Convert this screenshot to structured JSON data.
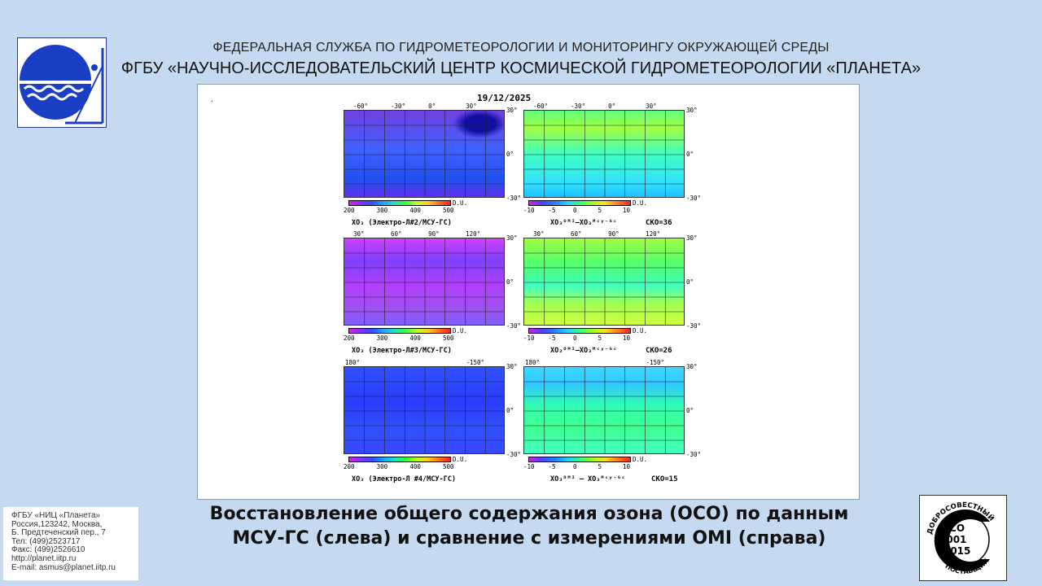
{
  "header": {
    "line1": "ФЕДЕРАЛЬНАЯ СЛУЖБА ПО ГИДРОМЕТЕОРОЛОГИИ И МОНИТОРИНГУ ОКРУЖАЮЩЕЙ СРЕДЫ",
    "line2": "ФГБУ «НАУЧНО-ИССЛЕДОВАТЕЛЬСКИЙ ЦЕНТР КОСМИЧЕСКОЙ ГИДРОМЕТЕОРОЛОГИИ «ПЛАНЕТА»"
  },
  "figure": {
    "date": "19/12/2025",
    "dot": ".",
    "unit": "D.U.",
    "abs_scale": [
      "200",
      "300",
      "400",
      "500"
    ],
    "diff_scale": [
      "-10",
      "-5",
      "0",
      "5",
      "10"
    ],
    "lat_ticks": [
      "30°",
      "0°",
      "-30°"
    ],
    "rows": [
      {
        "lon_left": [
          "-60°",
          "-30°",
          "0°",
          "30°"
        ],
        "lon_right": [
          "-60°",
          "-30°",
          "0°",
          "30°"
        ],
        "caption_left": "XO₃ (Электро-Л#2/МСУ-ГС)",
        "caption_right": "XO₃ᴼᴹᴵ–XO₃ᴹᶜʸ⁻ᴳᶜ",
        "sko": "СКО=36"
      },
      {
        "lon_left": [
          "30°",
          "60°",
          "90°",
          "120°"
        ],
        "lon_right": [
          "30°",
          "60°",
          "90°",
          "120°"
        ],
        "caption_left": "XO₃ (Электро-Л#3/МСУ-ГС)",
        "caption_right": "XO₃ᴼᴹᴵ–XO₃ᴹᶜʸ⁻ᴳᶜ",
        "sko": "СКО=26"
      },
      {
        "lon_left": [
          "180°",
          "-150°"
        ],
        "lon_right": [
          "180°",
          "-150°"
        ],
        "caption_left": "XO₃ (Электро-Л #4/МСУ-ГС)",
        "caption_right": "XO₃ᴼᴹᴵ – XO₃ᴹᶜʸ⁻ᴳᶜ",
        "sko": "СКО=15"
      }
    ]
  },
  "bottom_title": {
    "line1": "Восстановление общего содержания озона (ОСО) по данным",
    "line2": "МСУ-ГС (слева) и сравнение с измерениями OMI (справа)"
  },
  "contact": {
    "lines": [
      "ФГБУ «НИЦ «Планета»",
      "Россия,123242, Москва,",
      "Б. Предтеченский пер., 7",
      "Тел:    (499)2523717",
      "Факс: (499)2526610",
      "http://planet.iitp.ru",
      "E-mail: asmus@planet.iitp.ru"
    ]
  },
  "iso_badge": {
    "top_text": "ДОБРОСОВЕСТНЫЙ",
    "code": "ИСО",
    "number": "9001",
    "year": "-2015",
    "bottom_text": "ПОСТАВЩИК"
  },
  "colors": {
    "background": "#c5daf0",
    "logo_blue": "#1a3fc4"
  }
}
